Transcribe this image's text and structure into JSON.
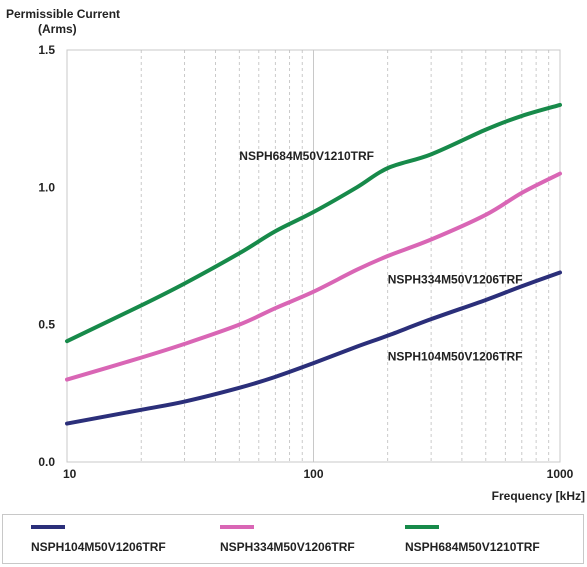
{
  "chart_data": {
    "type": "line",
    "ylabel": [
      "Permissible Current",
      "(Arms)"
    ],
    "xlabel": "Frequency [kHz]",
    "x_scale": "log",
    "xlim": [
      10,
      1000
    ],
    "ylim": [
      0,
      1.5
    ],
    "x_ticks": [
      10,
      100,
      1000
    ],
    "x_tick_labels": [
      "10",
      "100",
      "1000"
    ],
    "y_ticks": [
      0,
      0.5,
      1.0,
      1.5
    ],
    "y_tick_labels": [
      "0.0",
      "0.5",
      "1.0",
      "1.5"
    ],
    "grid": {
      "vertical_minor": true,
      "style": "dashed"
    },
    "legend_position": "bottom",
    "x": [
      10,
      20,
      30,
      50,
      70,
      100,
      150,
      200,
      300,
      500,
      700,
      1000
    ],
    "series": [
      {
        "name": "NSPH104M50V1206TRF",
        "color": "#2b2f7a",
        "values": [
          0.14,
          0.19,
          0.22,
          0.27,
          0.31,
          0.36,
          0.42,
          0.46,
          0.52,
          0.59,
          0.64,
          0.69
        ],
        "label_at": [
          200,
          0.37
        ]
      },
      {
        "name": "NSPH334M50V1206TRF",
        "color": "#d966b5",
        "values": [
          0.3,
          0.38,
          0.43,
          0.5,
          0.56,
          0.62,
          0.7,
          0.75,
          0.81,
          0.9,
          0.98,
          1.05
        ],
        "label_at": [
          200,
          0.65
        ]
      },
      {
        "name": "NSPH684M50V1210TRF",
        "color": "#178a4a",
        "values": [
          0.44,
          0.57,
          0.65,
          0.76,
          0.84,
          0.91,
          1.0,
          1.07,
          1.12,
          1.21,
          1.26,
          1.3
        ],
        "label_at": [
          50,
          1.1
        ]
      }
    ]
  }
}
